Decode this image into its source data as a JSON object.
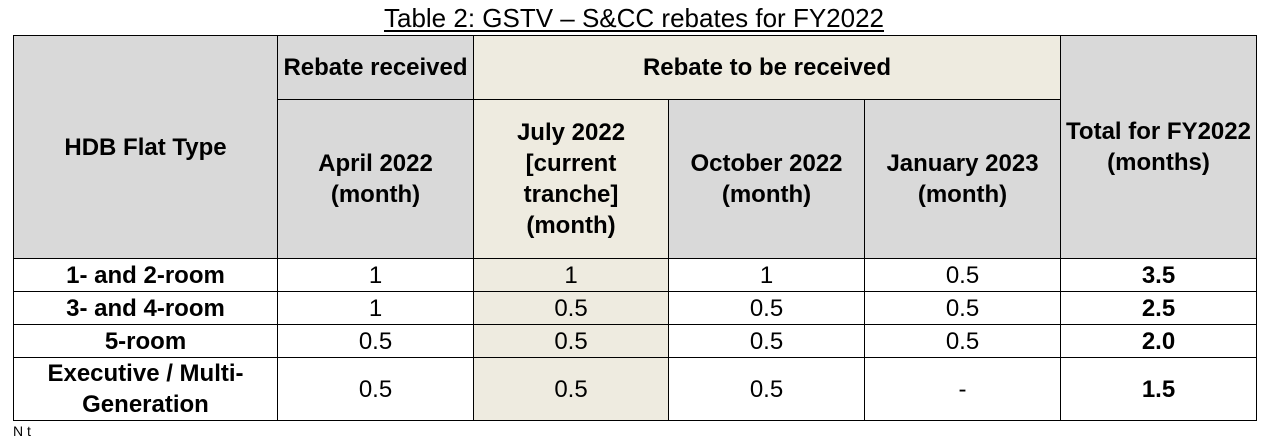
{
  "title": "Table 2: GSTV – S&CC rebates for FY2022",
  "header": {
    "flat_type": "HDB Flat Type",
    "rebate_received": "Rebate received",
    "rebate_to_be_received": "Rebate to be received",
    "total": "Total for FY2022 (months)",
    "col_april": "April 2022 (month)",
    "col_july": "July 2022 [current tranche] (month)",
    "col_october": "October 2022 (month)",
    "col_january": "January 2023 (month)"
  },
  "rows": [
    {
      "type": "1-  and 2-room",
      "april": "1",
      "july": "1",
      "october": "1",
      "january": "0.5",
      "total": "3.5"
    },
    {
      "type": "3-  and 4-room",
      "april": "1",
      "july": "0.5",
      "october": "0.5",
      "january": "0.5",
      "total": "2.5"
    },
    {
      "type": "5-room",
      "april": "0.5",
      "july": "0.5",
      "october": "0.5",
      "january": "0.5",
      "total": "2.0"
    },
    {
      "type": "Executive / Multi-Generation",
      "april": "0.5",
      "july": "0.5",
      "october": "0.5",
      "january": "-",
      "total": "1.5"
    }
  ],
  "footnote": "N t"
}
